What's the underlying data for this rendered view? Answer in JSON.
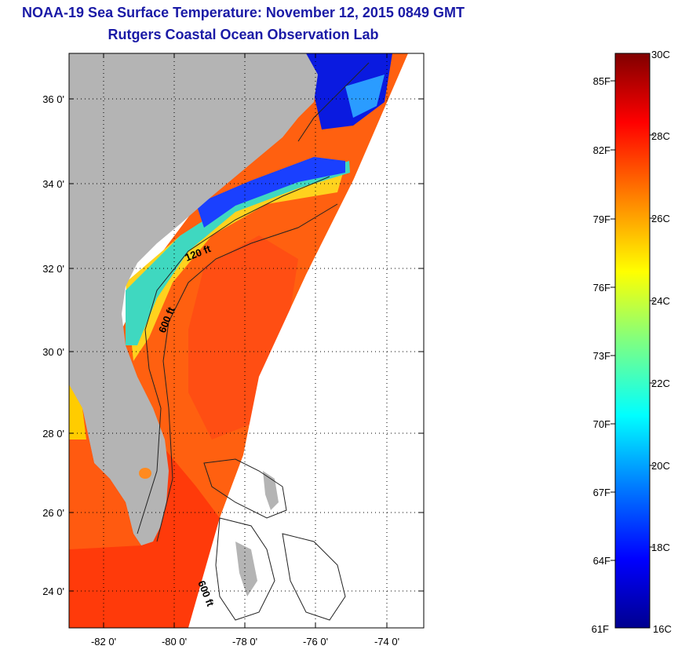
{
  "header": {
    "title": "NOAA-19 Sea Surface Temperature:  November 12, 2015 0849 GMT",
    "subtitle": "Rutgers Coastal Ocean Observation Lab"
  },
  "map": {
    "lat_ticks": [
      {
        "value": 24,
        "label": "24 0'"
      },
      {
        "value": 26,
        "label": "26 0'"
      },
      {
        "value": 28,
        "label": "28 0'"
      },
      {
        "value": 30,
        "label": "30 0'"
      },
      {
        "value": 32,
        "label": "32 0'"
      },
      {
        "value": 34,
        "label": "34 0'"
      },
      {
        "value": 36,
        "label": "36 0'"
      }
    ],
    "lon_ticks": [
      {
        "value": -82,
        "label": "-82 0'"
      },
      {
        "value": -80,
        "label": "-80 0'"
      },
      {
        "value": -78,
        "label": "-78 0'"
      },
      {
        "value": -76,
        "label": "-76 0'"
      },
      {
        "value": -74,
        "label": "-74 0'"
      }
    ],
    "contour_labels": [
      "120 ft",
      "600 ft",
      "600 ft"
    ],
    "colors": {
      "land": "#b4b4b4",
      "no_data": "#ffffff",
      "frame": "#000000"
    }
  },
  "colorbar": {
    "celsius_labels": [
      "30C",
      "28C",
      "26C",
      "24C",
      "22C",
      "20C",
      "18C",
      "16C"
    ],
    "fahrenheit_labels": [
      "85F",
      "82F",
      "79F",
      "76F",
      "73F",
      "70F",
      "67F",
      "64F",
      "61F"
    ],
    "colormap": [
      "#00008f",
      "#0000ff",
      "#0080ff",
      "#00ffff",
      "#80ff80",
      "#ffff00",
      "#ff8000",
      "#ff0000",
      "#800000"
    ]
  }
}
